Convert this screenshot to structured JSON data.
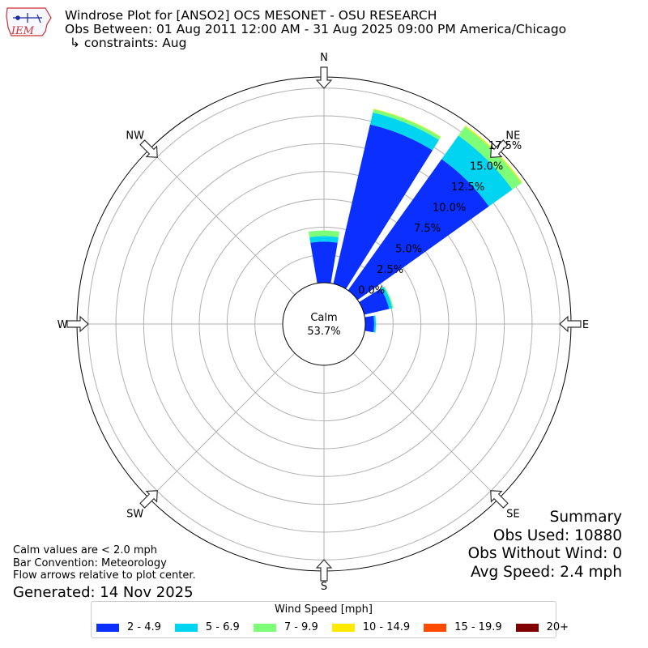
{
  "logo": {
    "text": "IEM",
    "icon": "iowa-state-outline-icon"
  },
  "header": {
    "title": "Windrose Plot for [ANSO2] OCS MESONET - OSU RESEARCH",
    "obs_between": "Obs Between: 01 Aug 2011 12:00 AM - 31 Aug 2025 09:00 PM America/Chicago",
    "constraints": "↳ constraints: Aug"
  },
  "chart_data": {
    "type": "windrose",
    "compass_labels": {
      "N": "N",
      "NE": "NE",
      "E": "E",
      "SE": "SE",
      "S": "S",
      "SW": "SW",
      "W": "W",
      "NW": "NW"
    },
    "radial_ticks": [
      "0.0%",
      "2.5%",
      "5.0%",
      "7.5%",
      "10.0%",
      "12.5%",
      "15.0%",
      "17.5%"
    ],
    "radial_values": [
      0,
      2.5,
      5,
      7.5,
      10,
      12.5,
      15,
      17.5
    ],
    "rmax": 18.5,
    "calm": {
      "label": "Calm",
      "value": "53.7%",
      "pct": 53.7
    },
    "directions_deg": [
      0,
      22.5,
      45,
      67.5,
      90,
      112.5,
      135,
      157.5,
      180,
      202.5,
      225,
      247.5,
      270,
      292.5,
      315,
      337.5
    ],
    "series": [
      {
        "name": "2 - 4.9",
        "color": "#0a2fff",
        "values": [
          3.7,
          14.7,
          14.5,
          2.3,
          0.8,
          0,
          0,
          0,
          0,
          0,
          0,
          0,
          0,
          0,
          0,
          0
        ]
      },
      {
        "name": "5 - 6.9",
        "color": "#00d4f0",
        "values": [
          0.5,
          1.1,
          2.6,
          0.3,
          0.15,
          0,
          0,
          0,
          0,
          0,
          0,
          0,
          0,
          0,
          0,
          0
        ]
      },
      {
        "name": "7 - 9.9",
        "color": "#7dff7a",
        "values": [
          0.5,
          0.3,
          1.0,
          0.1,
          0.05,
          0,
          0,
          0,
          0,
          0,
          0,
          0,
          0,
          0,
          0,
          0
        ]
      },
      {
        "name": "10 - 14.9",
        "color": "#ffea00",
        "values": [
          0,
          0.05,
          0.1,
          0,
          0,
          0,
          0,
          0,
          0,
          0,
          0,
          0,
          0,
          0,
          0,
          0
        ]
      },
      {
        "name": "15 - 19.9",
        "color": "#ff4a00",
        "values": [
          0,
          0,
          0,
          0,
          0,
          0,
          0,
          0,
          0,
          0,
          0,
          0,
          0,
          0,
          0,
          0
        ]
      },
      {
        "name": "20+",
        "color": "#800000",
        "values": [
          0,
          0,
          0,
          0,
          0,
          0,
          0,
          0,
          0,
          0,
          0,
          0,
          0,
          0,
          0,
          0
        ]
      }
    ]
  },
  "legend": {
    "title": "Wind Speed [mph]",
    "items": [
      {
        "label": "2 - 4.9",
        "color": "#0a2fff"
      },
      {
        "label": "5 - 6.9",
        "color": "#00d4f0"
      },
      {
        "label": "7 - 9.9",
        "color": "#7dff7a"
      },
      {
        "label": "10 - 14.9",
        "color": "#ffea00"
      },
      {
        "label": "15 - 19.9",
        "color": "#ff4a00"
      },
      {
        "label": "20+",
        "color": "#800000"
      }
    ]
  },
  "summary": {
    "title": "Summary",
    "obs_used": "Obs Used: 10880",
    "obs_without_wind": "Obs Without Wind: 0",
    "avg_speed": "Avg Speed: 2.4 mph"
  },
  "notes": {
    "calm": "Calm values are < 2.0 mph",
    "bar_convention": "Bar Convention: Meteorology",
    "flow": "Flow arrows relative to plot center.",
    "generated": "Generated: 14 Nov 2025"
  }
}
